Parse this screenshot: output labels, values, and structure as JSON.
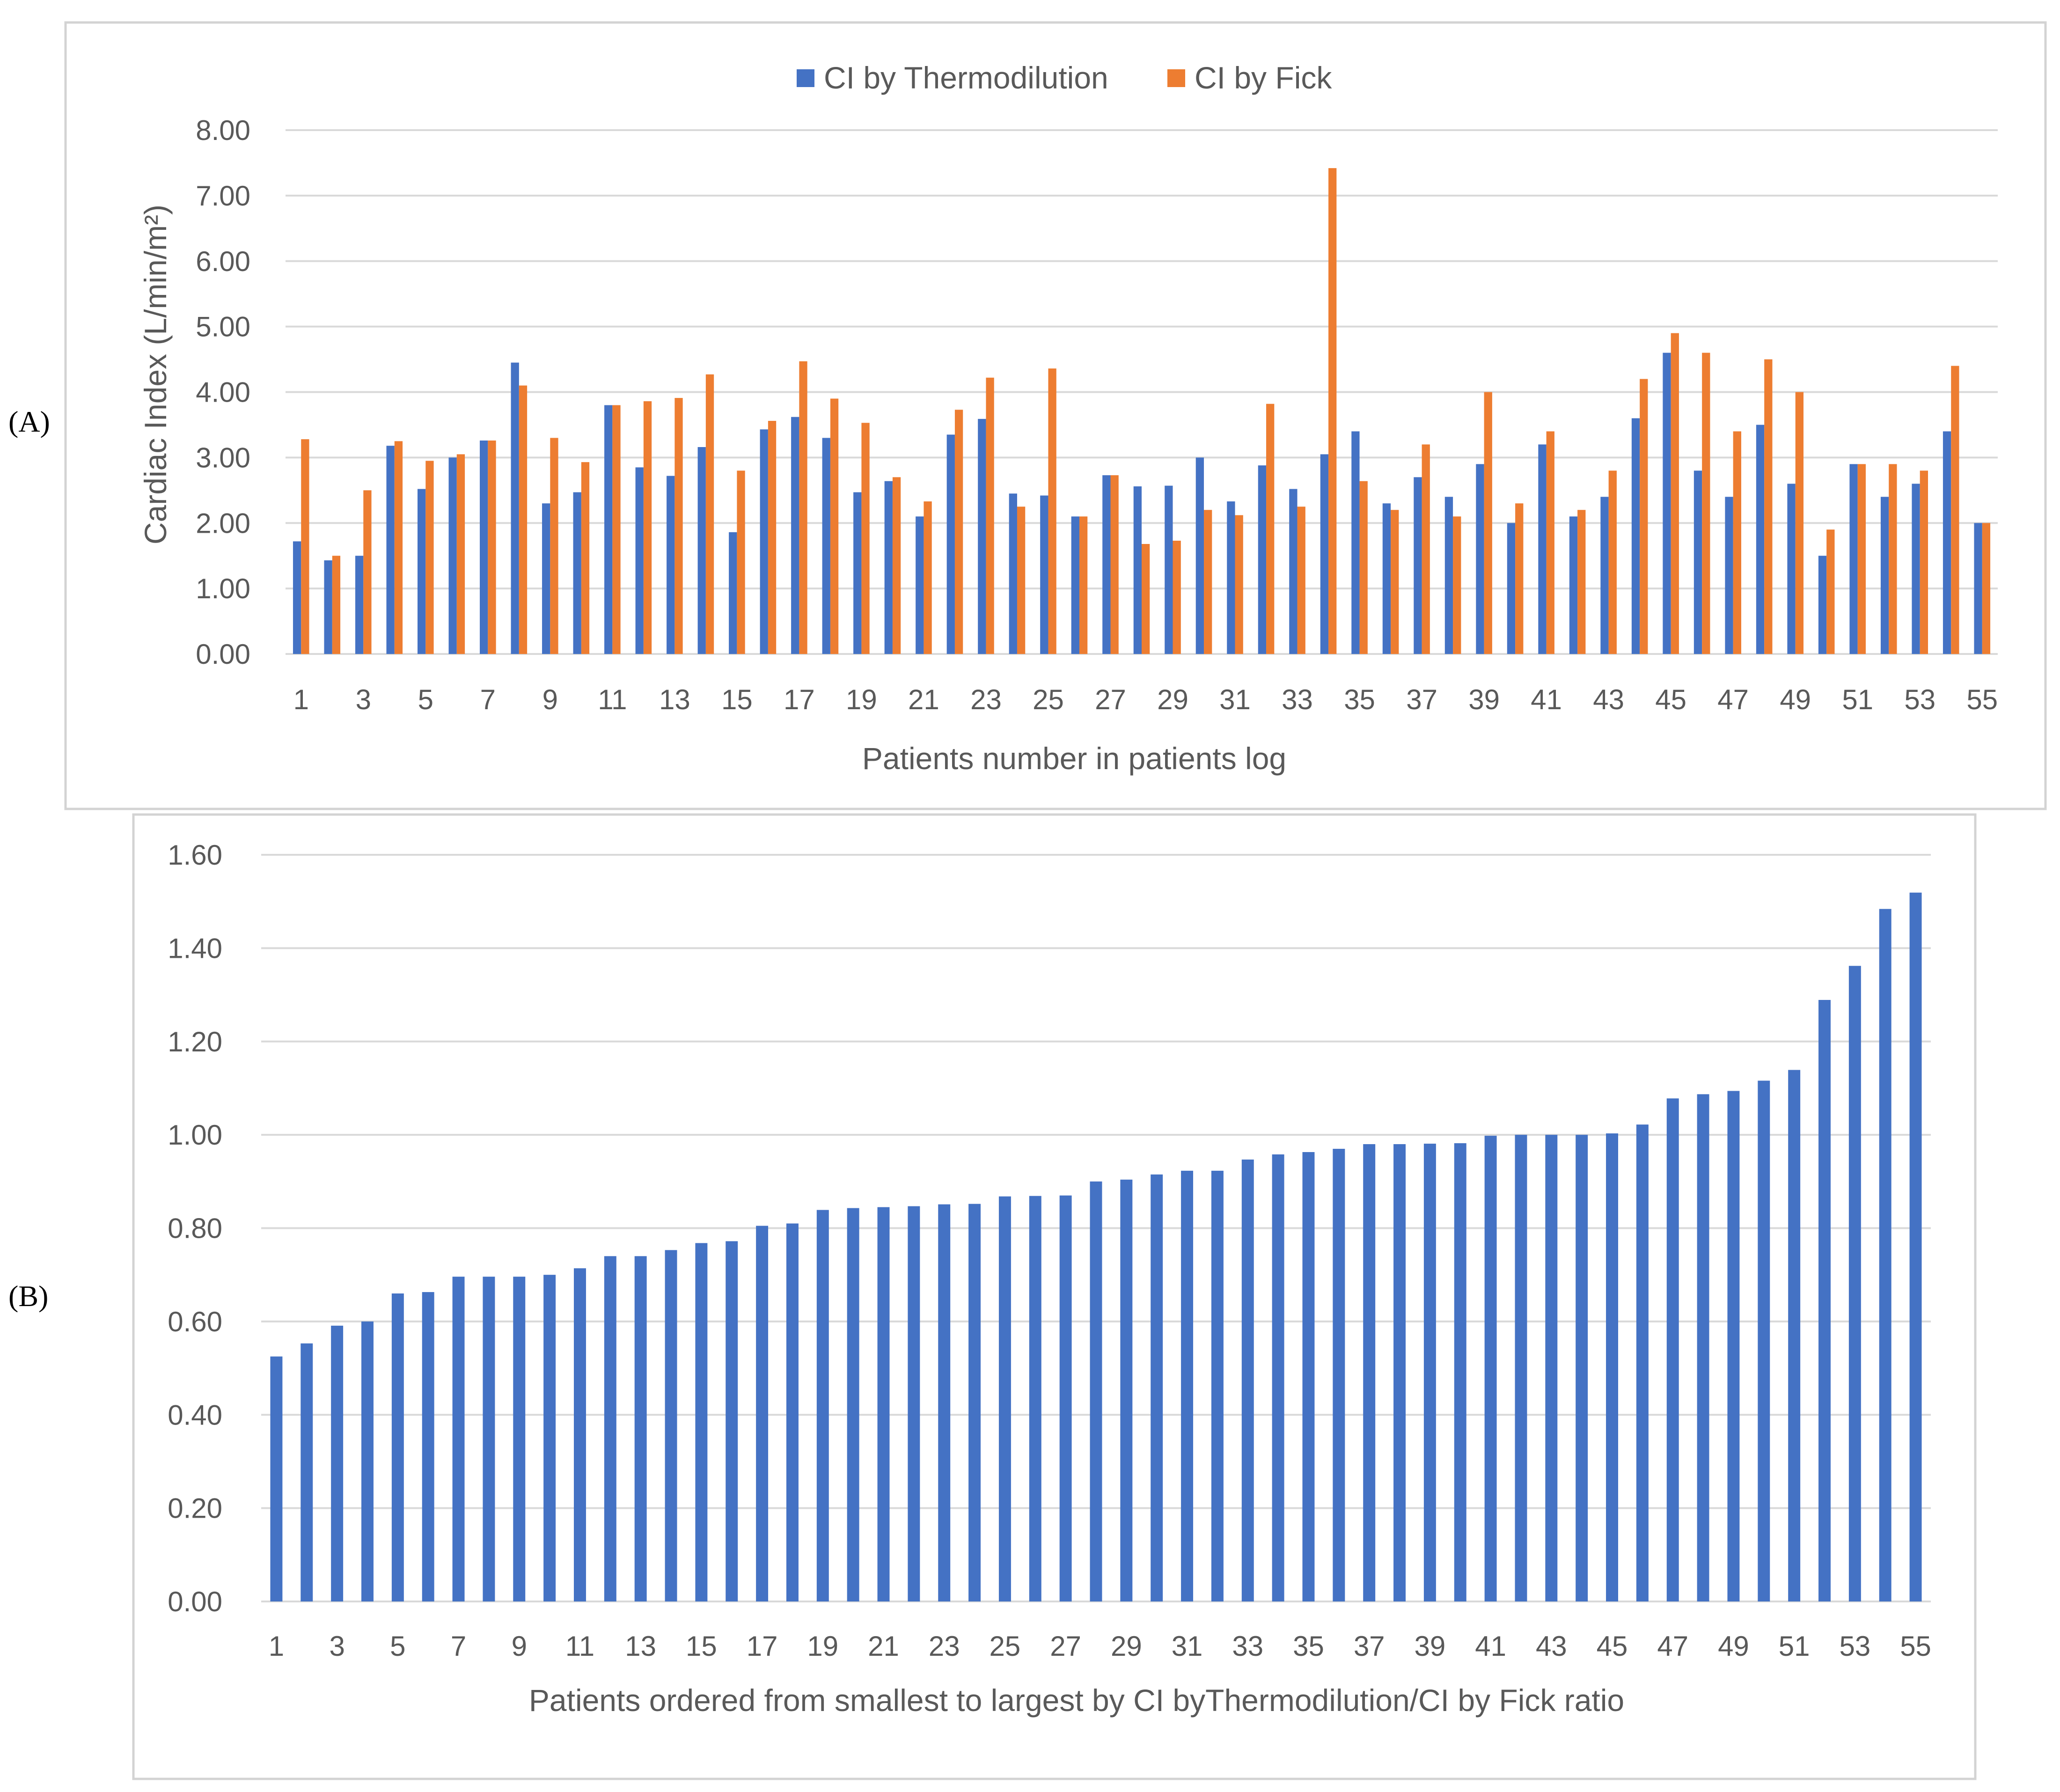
{
  "colors": {
    "thermodilution": "#4472c4",
    "fick": "#ed7d31",
    "grid": "#d9d9d9",
    "text": "#595959"
  },
  "panel_labels": [
    "(A)",
    "(B)"
  ],
  "chart_data": [
    {
      "type": "bar",
      "panel": "(A)",
      "title": "",
      "ylabel": "Cardiac Index (L/min/m²)",
      "xlabel": "Patients number in patients log",
      "ylim": [
        0,
        8
      ],
      "yticks": [
        "0.00",
        "1.00",
        "2.00",
        "3.00",
        "4.00",
        "5.00",
        "6.00",
        "7.00",
        "8.00"
      ],
      "legend_position": "top-center",
      "categories": [
        1,
        2,
        3,
        4,
        5,
        6,
        7,
        8,
        9,
        10,
        11,
        12,
        13,
        14,
        15,
        16,
        17,
        18,
        19,
        20,
        21,
        22,
        23,
        24,
        25,
        26,
        27,
        28,
        29,
        30,
        31,
        32,
        33,
        34,
        35,
        36,
        37,
        38,
        39,
        40,
        41,
        42,
        43,
        44,
        45,
        46,
        47,
        48,
        49,
        50,
        51,
        52,
        53,
        54,
        55
      ],
      "xtick_labels": [
        "1",
        "",
        "3",
        "",
        "5",
        "",
        "7",
        "",
        "9",
        "",
        "11",
        "",
        "13",
        "",
        "15",
        "",
        "17",
        "",
        "19",
        "",
        "21",
        "",
        "23",
        "",
        "25",
        "",
        "27",
        "",
        "29",
        "",
        "31",
        "",
        "33",
        "",
        "35",
        "",
        "37",
        "",
        "39",
        "",
        "41",
        "",
        "43",
        "",
        "45",
        "",
        "47",
        "",
        "49",
        "",
        "51",
        "",
        "53",
        "",
        "55"
      ],
      "series": [
        {
          "name": "CI by Thermodilution",
          "color": "#4472c4",
          "values": [
            1.72,
            1.43,
            1.5,
            3.18,
            2.52,
            3.0,
            3.26,
            4.45,
            2.3,
            2.47,
            3.8,
            2.85,
            2.72,
            3.16,
            1.86,
            3.43,
            3.62,
            3.3,
            2.47,
            2.64,
            2.1,
            3.35,
            3.59,
            2.45,
            2.42,
            2.1,
            2.73,
            2.56,
            2.57,
            3.0,
            2.33,
            2.88,
            2.52,
            3.05,
            3.4,
            2.3,
            2.7,
            2.4,
            2.9,
            2.0,
            3.2,
            2.1,
            2.4,
            3.6,
            4.6,
            2.8,
            2.4,
            3.5,
            2.6,
            1.5,
            2.9,
            2.4,
            2.6,
            3.4,
            2.0
          ]
        },
        {
          "name": "CI by Fick",
          "color": "#ed7d31",
          "values": [
            3.28,
            1.5,
            2.5,
            3.25,
            2.95,
            3.05,
            3.26,
            4.1,
            3.3,
            2.93,
            3.8,
            3.86,
            3.91,
            4.27,
            2.8,
            3.56,
            4.47,
            3.9,
            3.53,
            2.7,
            2.33,
            3.73,
            4.22,
            2.25,
            4.36,
            2.1,
            2.73,
            1.68,
            1.73,
            2.2,
            2.12,
            3.82,
            2.25,
            7.42,
            2.64,
            2.2,
            3.2,
            2.1,
            4.0,
            2.3,
            3.4,
            2.2,
            2.8,
            4.2,
            4.9,
            4.6,
            3.4,
            4.5,
            4.0,
            1.9,
            2.9,
            2.9,
            2.8,
            4.4,
            2.0
          ]
        }
      ]
    },
    {
      "type": "bar",
      "panel": "(B)",
      "title": "",
      "ylabel": "",
      "xlabel": "Patients ordered from smallest to largest by CI byThermodilution/CI by Fick ratio",
      "ylim": [
        0,
        1.6
      ],
      "yticks": [
        "0.00",
        "0.20",
        "0.40",
        "0.60",
        "0.80",
        "1.00",
        "1.20",
        "1.40",
        "1.60"
      ],
      "legend_position": "none",
      "categories": [
        1,
        2,
        3,
        4,
        5,
        6,
        7,
        8,
        9,
        10,
        11,
        12,
        13,
        14,
        15,
        16,
        17,
        18,
        19,
        20,
        21,
        22,
        23,
        24,
        25,
        26,
        27,
        28,
        29,
        30,
        31,
        32,
        33,
        34,
        35,
        36,
        37,
        38,
        39,
        40,
        41,
        42,
        43,
        44,
        45,
        46,
        47,
        48,
        49,
        50,
        51,
        52,
        53,
        54,
        55
      ],
      "xtick_labels": [
        "1",
        "",
        "3",
        "",
        "5",
        "",
        "7",
        "",
        "9",
        "",
        "11",
        "",
        "13",
        "",
        "15",
        "",
        "17",
        "",
        "19",
        "",
        "21",
        "",
        "23",
        "",
        "25",
        "",
        "27",
        "",
        "29",
        "",
        "31",
        "",
        "33",
        "",
        "35",
        "",
        "37",
        "",
        "39",
        "",
        "41",
        "",
        "43",
        "",
        "45",
        "",
        "47",
        "",
        "49",
        "",
        "51",
        "",
        "53",
        "",
        "55"
      ],
      "series": [
        {
          "name": "CI by Thermodilution / CI by Fick ratio",
          "color": "#4472c4",
          "values": [
            0.525,
            0.553,
            0.591,
            0.6,
            0.66,
            0.663,
            0.696,
            0.696,
            0.696,
            0.7,
            0.714,
            0.74,
            0.74,
            0.753,
            0.768,
            0.772,
            0.805,
            0.81,
            0.839,
            0.843,
            0.845,
            0.847,
            0.851,
            0.852,
            0.868,
            0.869,
            0.87,
            0.9,
            0.904,
            0.915,
            0.923,
            0.923,
            0.947,
            0.958,
            0.963,
            0.97,
            0.98,
            0.98,
            0.981,
            0.982,
            0.998,
            1.0,
            1.0,
            1.0,
            1.003,
            1.022,
            1.078,
            1.087,
            1.094,
            1.116,
            1.139,
            1.289,
            1.362,
            1.484,
            1.519
          ]
        }
      ]
    }
  ]
}
